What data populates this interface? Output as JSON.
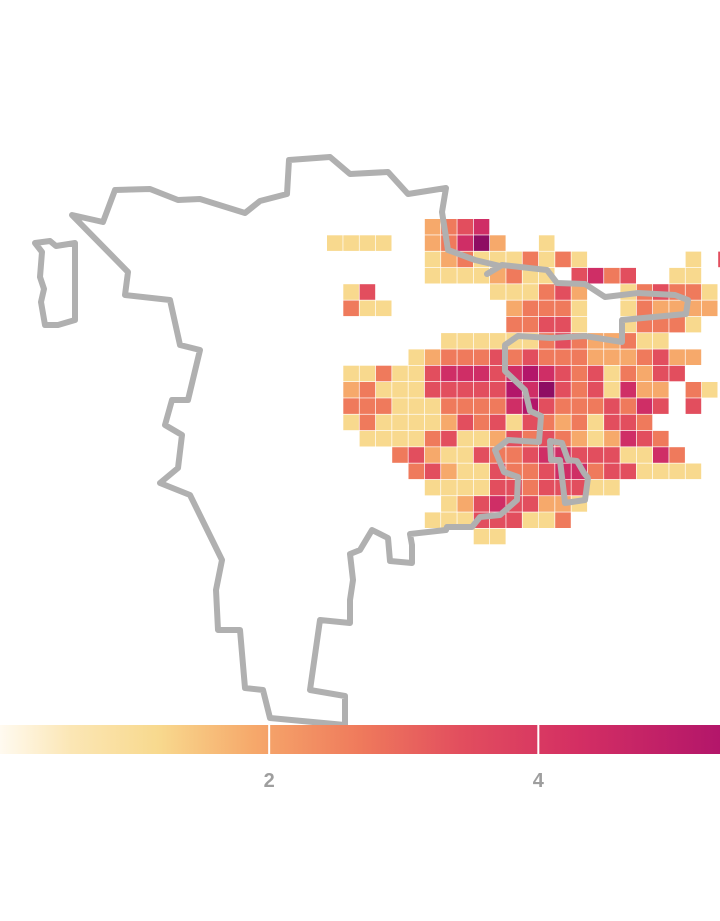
{
  "colors": {
    "background": "#ffffff",
    "boundary": "#b0b0b0",
    "cell_gap": "#ffffff",
    "scale": [
      "#fffaf0",
      "#fde9b8",
      "#f8d98e",
      "#f6a96b",
      "#ef7a5c",
      "#e24e5e",
      "#cf2e66",
      "#b3166a",
      "#8e0d63"
    ]
  },
  "legend": {
    "domain": [
      0,
      5.35
    ],
    "ticks": [
      {
        "value": 2,
        "label": "2"
      },
      {
        "value": 4,
        "label": "4"
      }
    ]
  },
  "grid_rows": [
    {
      "row": 0,
      "start": 16,
      "values": [
        2,
        3,
        4,
        5
      ]
    },
    {
      "row": 1,
      "start": 10,
      "values": [
        1,
        1,
        1,
        1,
        0,
        0,
        2,
        3,
        5,
        7,
        2
      ]
    },
    {
      "row": 1,
      "start": 23,
      "values": [
        1
      ]
    },
    {
      "row": 2,
      "start": 16,
      "values": [
        1,
        2,
        3,
        1,
        1,
        1,
        3,
        1,
        3,
        1
      ]
    },
    {
      "row": 2,
      "start": 32,
      "values": [
        1,
        0,
        4,
        4,
        3,
        3,
        1
      ]
    },
    {
      "row": 3,
      "start": 16,
      "values": [
        1,
        1,
        1,
        1,
        2,
        3,
        1,
        1,
        0,
        4,
        5,
        3,
        4,
        0,
        0,
        1,
        1
      ]
    },
    {
      "row": 4,
      "start": 11,
      "values": [
        1,
        4
      ]
    },
    {
      "row": 4,
      "start": 20,
      "values": [
        1,
        1,
        1,
        3,
        4,
        2
      ]
    },
    {
      "row": 4,
      "start": 28,
      "values": [
        1,
        3,
        4,
        3,
        3,
        1
      ]
    },
    {
      "row": 5,
      "start": 11,
      "values": [
        3,
        1,
        1
      ]
    },
    {
      "row": 5,
      "start": 21,
      "values": [
        2,
        3,
        3,
        3,
        1
      ]
    },
    {
      "row": 5,
      "start": 28,
      "values": [
        1,
        3,
        2,
        2,
        2,
        2
      ]
    },
    {
      "row": 6,
      "start": 21,
      "values": [
        3,
        3,
        4,
        4,
        1
      ]
    },
    {
      "row": 6,
      "start": 28,
      "values": [
        1,
        3,
        3,
        3,
        1
      ]
    },
    {
      "row": 7,
      "start": 17,
      "values": [
        1,
        1,
        1,
        1,
        1,
        1,
        3,
        4,
        3,
        2,
        2,
        3,
        1,
        1
      ]
    },
    {
      "row": 8,
      "start": 15,
      "values": [
        1,
        2,
        3,
        3,
        3,
        4,
        3,
        4,
        3,
        3,
        3,
        2,
        2,
        2,
        3,
        4,
        2,
        2
      ]
    },
    {
      "row": 9,
      "start": 11,
      "values": [
        1,
        1,
        3,
        1,
        1,
        4,
        5,
        5,
        5,
        4,
        5,
        6,
        5,
        4,
        3,
        4,
        1,
        3,
        2,
        4,
        4
      ]
    },
    {
      "row": 10,
      "start": 11,
      "values": [
        2,
        3,
        1,
        1,
        1,
        4,
        4,
        4,
        4,
        4,
        6,
        5,
        7,
        4,
        3,
        4,
        1,
        5,
        2,
        2
      ]
    },
    {
      "row": 10,
      "start": 32,
      "values": [
        3,
        1
      ]
    },
    {
      "row": 11,
      "start": 11,
      "values": [
        3,
        3,
        3,
        1,
        1,
        1,
        3,
        3,
        3,
        3,
        5,
        6,
        4,
        3,
        3,
        3,
        4,
        3,
        5,
        4
      ]
    },
    {
      "row": 11,
      "start": 32,
      "values": [
        4
      ]
    },
    {
      "row": 12,
      "start": 11,
      "values": [
        1,
        3,
        1,
        1,
        1,
        1,
        2,
        4,
        3,
        4,
        1,
        4,
        3,
        2,
        3,
        1,
        4,
        4,
        3
      ]
    },
    {
      "row": 13,
      "start": 12,
      "values": [
        1,
        1,
        1,
        1,
        3,
        4,
        1,
        1,
        2,
        4,
        3,
        4,
        3,
        2,
        1,
        2,
        5,
        4,
        3
      ]
    },
    {
      "row": 14,
      "start": 14,
      "values": [
        3,
        4,
        2,
        1,
        1,
        4,
        3,
        3,
        4,
        5,
        5,
        4,
        4,
        4,
        1,
        1,
        5,
        3
      ]
    },
    {
      "row": 15,
      "start": 15,
      "values": [
        3,
        4,
        2,
        1,
        1,
        4,
        3,
        3,
        4,
        5,
        5,
        3,
        4,
        4,
        1,
        1,
        1,
        1
      ]
    },
    {
      "row": 16,
      "start": 16,
      "values": [
        1,
        1,
        1,
        1,
        4,
        4,
        3,
        4,
        4,
        4,
        1,
        1
      ]
    },
    {
      "row": 17,
      "start": 17,
      "values": [
        1,
        2,
        4,
        5,
        4,
        4,
        2,
        2,
        1
      ]
    },
    {
      "row": 18,
      "start": 16,
      "values": [
        1,
        1,
        1,
        4,
        4,
        4,
        1,
        1
      ]
    },
    {
      "row": 18,
      "start": 23,
      "values": [
        1,
        3
      ]
    },
    {
      "row": 19,
      "start": 19,
      "values": [
        1,
        1
      ]
    }
  ]
}
